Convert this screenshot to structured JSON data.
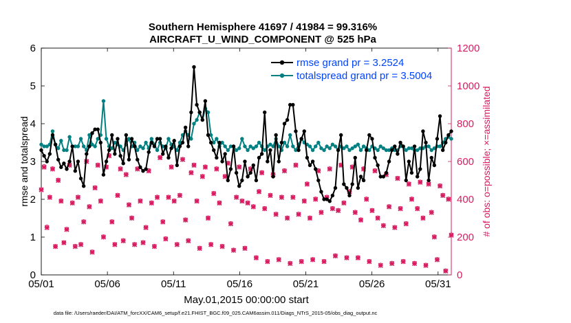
{
  "chart_data": {
    "type": "line",
    "title_line1": "Southern Hemisphere 41697 / 41984 = 99.316%",
    "title_line2": "AIRCRAFT_U_WIND_COMPONENT @ 525 hPa",
    "xlabel": "May.01,2015 00:00:00 start",
    "ylabel_left": "rmse and totalspread",
    "ylabel_right": "# of obs: o=possible; ×=assimilated",
    "footer": "data file: /Users/raeder/DAI/ATM_forcXX/CAM6_setup/f.e21.FHIST_BGC.f09_025.CAM6assim.011/Diags_NTrS_2015-05/obs_diag_output.nc",
    "x_ticks": [
      {
        "day": 0,
        "label": "05/01"
      },
      {
        "day": 5,
        "label": "05/06"
      },
      {
        "day": 10,
        "label": "05/11"
      },
      {
        "day": 15,
        "label": "05/16"
      },
      {
        "day": 20,
        "label": "05/21"
      },
      {
        "day": 25,
        "label": "05/26"
      },
      {
        "day": 30,
        "label": "05/31"
      }
    ],
    "xlim": [
      0,
      31
    ],
    "ylim_left": [
      0,
      6
    ],
    "ylim_right": [
      0,
      1200
    ],
    "yticks_left": [
      "0",
      "1",
      "2",
      "3",
      "4",
      "5",
      "6"
    ],
    "yticks_right": [
      "0",
      "200",
      "400",
      "600",
      "800",
      "1000",
      "1200"
    ],
    "colors": {
      "rmse": "#000000",
      "totalspread": "#008080",
      "obs": "#D81B60",
      "legend_text": "#0044FF"
    },
    "series": [
      {
        "name": "rmse",
        "legend": "rmse grand pr = 3.2524",
        "values": [
          3.3,
          3.15,
          3.0,
          3.2,
          3.7,
          3.45,
          3.05,
          2.85,
          2.95,
          2.8,
          3.0,
          3.4,
          2.75,
          3.0,
          2.55,
          2.35,
          3.2,
          3.4,
          3.75,
          3.85,
          3.85,
          3.5,
          2.65,
          3.0,
          3.3,
          3.7,
          3.2,
          3.6,
          3.15,
          2.95,
          3.7,
          3.05,
          3.6,
          3.4,
          3.05,
          2.85,
          2.75,
          2.8,
          3.25,
          3.5,
          3.4,
          3.6,
          3.6,
          3.2,
          3.4,
          3.1,
          3.35,
          3.55,
          2.9,
          3.4,
          3.5,
          3.9,
          3.4,
          4.3,
          5.5,
          4.5,
          4.3,
          4.1,
          4.6,
          3.7,
          3.5,
          3.3,
          3.1,
          3.5,
          3.0,
          3.2,
          2.5,
          2.8,
          3.4,
          2.7,
          2.35,
          2.5,
          3.0,
          2.6,
          2.7,
          2.9,
          2.5,
          3.1,
          3.2,
          4.3,
          3.0,
          3.3,
          2.6,
          3.7,
          3.0,
          3.5,
          4.0,
          4.1,
          4.5,
          4.5,
          3.8,
          3.3,
          3.6,
          3.8,
          3.1,
          2.9,
          3.0,
          2.8,
          2.5,
          2.2,
          2.0,
          2.0,
          1.95,
          2.1,
          2.3,
          3.3,
          3.7,
          2.4,
          2.3,
          2.1,
          2.4,
          3.1,
          2.3,
          2.6,
          2.5,
          3.3,
          3.7,
          3.6,
          3.1,
          2.9,
          2.6,
          2.6,
          2.7,
          3.0,
          3.3,
          3.4,
          3.2,
          3.5,
          3.4,
          2.5,
          3.0,
          2.7,
          3.4,
          2.6,
          2.8,
          3.8,
          3.5,
          2.5,
          3.1,
          2.9,
          3.6,
          4.2,
          3.3,
          3.5,
          3.7,
          3.8
        ]
      },
      {
        "name": "totalspread",
        "legend": "totalspread grand pr = 3.5004",
        "values": [
          3.45,
          3.4,
          3.4,
          3.45,
          3.8,
          3.45,
          3.35,
          3.55,
          3.3,
          3.3,
          3.65,
          3.4,
          3.4,
          3.4,
          3.6,
          3.4,
          3.3,
          3.7,
          3.45,
          3.4,
          3.6,
          3.7,
          4.6,
          3.6,
          3.4,
          3.35,
          3.5,
          3.45,
          3.4,
          3.3,
          3.45,
          3.6,
          3.4,
          3.5,
          3.3,
          3.4,
          3.35,
          3.5,
          3.35,
          3.6,
          3.45,
          3.3,
          3.5,
          3.4,
          3.35,
          3.6,
          3.45,
          3.4,
          3.3,
          3.5,
          3.7,
          3.8,
          3.7,
          3.6,
          4.0,
          4.1,
          4.3,
          4.1,
          4.4,
          4.3,
          3.7,
          3.5,
          3.6,
          3.4,
          3.5,
          3.4,
          3.3,
          3.4,
          3.4,
          3.3,
          3.35,
          3.6,
          3.4,
          3.3,
          3.4,
          3.35,
          3.4,
          3.5,
          3.4,
          3.3,
          3.4,
          3.45,
          3.4,
          3.6,
          3.4,
          3.3,
          3.5,
          3.4,
          3.7,
          3.4,
          3.3,
          3.45,
          3.6,
          3.5,
          3.45,
          3.4,
          3.3,
          3.4,
          3.5,
          3.35,
          3.3,
          3.4,
          3.35,
          3.45,
          3.4,
          3.3,
          3.4,
          3.35,
          3.4,
          3.3,
          3.35,
          3.4,
          3.45,
          3.3,
          3.4,
          3.35,
          3.3,
          3.4,
          3.35,
          3.3,
          3.4,
          3.35,
          3.3,
          3.3,
          3.35,
          3.3,
          3.3,
          3.4,
          3.4,
          3.3,
          3.35,
          3.35,
          3.3,
          3.3,
          3.35,
          3.35,
          3.4,
          3.4,
          3.3,
          3.35,
          3.4,
          3.4,
          3.5,
          3.6,
          3.65,
          3.6
        ]
      }
    ],
    "obs_assimilated": [
      {
        "name": "obs-00",
        "values": [
          450,
          570,
          250,
          410,
          560,
          150,
          500,
          390,
          170,
          240,
          580,
          380,
          150,
          410,
          160,
          280,
          600,
          360,
          120,
          460,
          580,
          390,
          200,
          570,
          630,
          280,
          160,
          420,
          560,
          180,
          530,
          370,
          300,
          160,
          560,
          390,
          170,
          250,
          550,
          380,
          150,
          410,
          620,
          280,
          190,
          410,
          570,
          390,
          160,
          420,
          610,
          290,
          180,
          540,
          580,
          390,
          140,
          520,
          570,
          300,
          160,
          430,
          560,
          380,
          150,
          520,
          590,
          270,
          130,
          410,
          570,
          390,
          140,
          380,
          560,
          360,
          90,
          440,
          540,
          350,
          70,
          420,
          530,
          320,
          80,
          410,
          550,
          300,
          60,
          410,
          580,
          320,
          70,
          390,
          480,
          300,
          80,
          400,
          550,
          330,
          70,
          410,
          560,
          350,
          100,
          340,
          580,
          380,
          90,
          440,
          570,
          330,
          90,
          290,
          560,
          400,
          70,
          340,
          550,
          300,
          50,
          260,
          530,
          360,
          60,
          250,
          510,
          350,
          70,
          270,
          480,
          400,
          60,
          350,
          490,
          300,
          50,
          480,
          330,
          200,
          80,
          470,
          420,
          20,
          400,
          210
        ]
      }
    ],
    "obs_possible": [
      {
        "name": "obs-01",
        "values": [
          453,
          575,
          255,
          413,
          563,
          152,
          503,
          393,
          172,
          243,
          583,
          383,
          153,
          413,
          163,
          283,
          603,
          363,
          123,
          463,
          583,
          393,
          203,
          573,
          633,
          283,
          163,
          423,
          563,
          183,
          533,
          373,
          303,
          163,
          563,
          393,
          173,
          253,
          553,
          383,
          153,
          413,
          623,
          283,
          193,
          413,
          573,
          393,
          163,
          423,
          613,
          293,
          183,
          543,
          583,
          393,
          143,
          523,
          573,
          303,
          163,
          433,
          563,
          383,
          153,
          523,
          593,
          273,
          133,
          413,
          573,
          393,
          143,
          383,
          563,
          363,
          93,
          443,
          543,
          353,
          73,
          423,
          533,
          323,
          83,
          413,
          553,
          303,
          63,
          413,
          583,
          323,
          73,
          393,
          483,
          303,
          83,
          403,
          553,
          333,
          73,
          413,
          563,
          353,
          103,
          343,
          583,
          383,
          93,
          443,
          573,
          333,
          93,
          293,
          563,
          403,
          73,
          343,
          553,
          303,
          53,
          263,
          533,
          363,
          63,
          253,
          513,
          353,
          73,
          273,
          483,
          403,
          63,
          353,
          493,
          303,
          53,
          483,
          333,
          203,
          83,
          473,
          423,
          23,
          403,
          213
        ]
      }
    ]
  }
}
